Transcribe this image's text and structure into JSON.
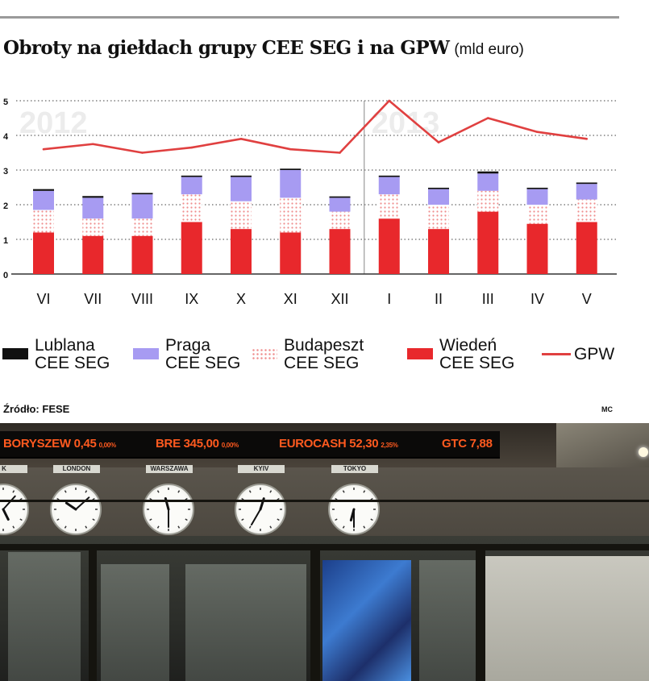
{
  "title": "Obroty na giełdach grupy CEE SEG i na GPW",
  "unit": "(mld euro)",
  "source": "Źródło: FESE",
  "author": "MC",
  "chart_data": {
    "type": "bar",
    "stacked": true,
    "categories": [
      "VI",
      "VII",
      "VIII",
      "IX",
      "X",
      "XI",
      "XII",
      "I",
      "II",
      "III",
      "IV",
      "V"
    ],
    "year_labels": [
      {
        "label": "2012",
        "starts_at": "VI"
      },
      {
        "label": "2013",
        "starts_at": "I"
      }
    ],
    "yticks": [
      0,
      1,
      2,
      3,
      4,
      5
    ],
    "ylim": [
      0,
      5
    ],
    "grid": true,
    "legend_position": "bottom",
    "series": [
      {
        "name": "Wiedeń CEE SEG",
        "label_lines": [
          "Wiedeń",
          "CEE SEG"
        ],
        "kind": "bar",
        "color": "#e8282c",
        "values": [
          1.2,
          1.1,
          1.1,
          1.5,
          1.3,
          1.2,
          1.3,
          1.6,
          1.3,
          1.8,
          1.45,
          1.5
        ]
      },
      {
        "name": "Budapeszt CEE SEG",
        "label_lines": [
          "Budapeszt",
          "CEE SEG"
        ],
        "kind": "bar",
        "color": "#ef8e8e",
        "pattern": "dots",
        "values": [
          0.65,
          0.5,
          0.5,
          0.8,
          0.8,
          1.0,
          0.5,
          0.7,
          0.7,
          0.6,
          0.55,
          0.65
        ]
      },
      {
        "name": "Praga CEE SEG",
        "label_lines": [
          "Praga",
          "CEE SEG"
        ],
        "kind": "bar",
        "color": "#a79bf2",
        "values": [
          0.55,
          0.6,
          0.7,
          0.5,
          0.7,
          0.8,
          0.4,
          0.5,
          0.45,
          0.5,
          0.45,
          0.45
        ]
      },
      {
        "name": "Lublana CEE SEG",
        "label_lines": [
          "Lublana",
          "CEE SEG"
        ],
        "kind": "bar",
        "color": "#111111",
        "values": [
          0.05,
          0.05,
          0.04,
          0.04,
          0.04,
          0.04,
          0.04,
          0.04,
          0.04,
          0.06,
          0.04,
          0.04
        ]
      },
      {
        "name": "GPW",
        "label_lines": [
          "GPW"
        ],
        "kind": "line",
        "color": "#e04040",
        "values": [
          3.6,
          3.75,
          3.5,
          3.65,
          3.9,
          3.6,
          3.5,
          5.0,
          3.8,
          4.5,
          4.1,
          3.9
        ]
      }
    ]
  },
  "photo": {
    "ticker": [
      {
        "symbol": "BORYSZEW",
        "price": "0,45",
        "change": "0,00%"
      },
      {
        "symbol": "BRE",
        "price": "345,00",
        "change": "0,00%"
      },
      {
        "symbol": "EUROCASH",
        "price": "52,30",
        "change": "2,35%"
      },
      {
        "symbol": "GTC",
        "price": "7,88",
        "change": ""
      }
    ],
    "clocks": [
      {
        "city": "NEW YORK",
        "display": "K",
        "hour": 5,
        "minute": 7
      },
      {
        "city": "LONDON",
        "display": "LONDON",
        "hour": 10,
        "minute": 8
      },
      {
        "city": "WARSZAWA",
        "display": "WARSZAWA",
        "hour": 11,
        "minute": 30
      },
      {
        "city": "KYIV",
        "display": "KYIV",
        "hour": 12,
        "minute": 35
      },
      {
        "city": "TOKYO",
        "display": "TOKYO",
        "hour": 6,
        "minute": 30
      }
    ]
  }
}
